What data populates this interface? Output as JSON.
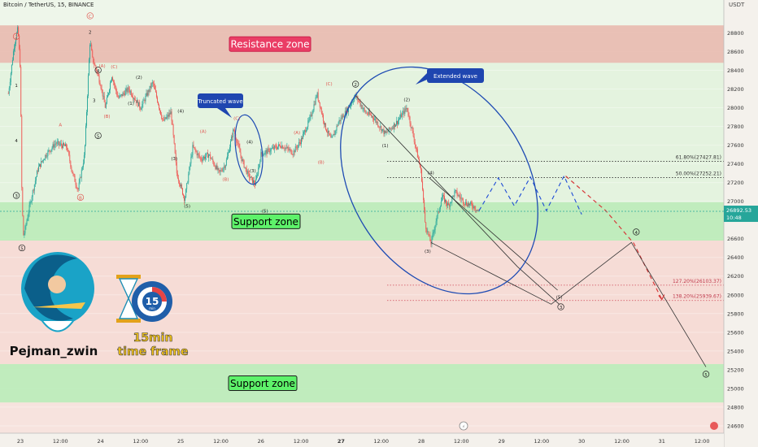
{
  "header": {
    "title": "Bitcoin / TetherUS, 15, BINANCE"
  },
  "axis_unit": "USDT",
  "author": {
    "name": "Pejman_zwin",
    "badge_number": "15",
    "badge_sub": "min",
    "timeframe_line1": "15min",
    "timeframe_line2": "time frame"
  },
  "colors": {
    "bull": "#26a69a",
    "bear": "#ef5350",
    "wave": "#1e4bb3",
    "resistance_fill": "#e8b9ab",
    "support_fill": "#b7ecb5",
    "green_bg": "#e4f3df",
    "pink_bg": "#f6dcd6",
    "price_tag": "#26a69a"
  },
  "chart_data": {
    "type": "candlestick",
    "title": "Bitcoin / TetherUS, 15, BINANCE",
    "ylabel": "USDT",
    "ylim": [
      24500,
      29000
    ],
    "yticks": [
      24600,
      24800,
      25000,
      25200,
      25400,
      25600,
      25800,
      26000,
      26200,
      26400,
      26600,
      26800,
      27000,
      27200,
      27400,
      27600,
      27800,
      28000,
      28200,
      28400,
      28600,
      28800
    ],
    "xtick_labels": [
      {
        "t": 0.0,
        "label": "23"
      },
      {
        "t": 0.5,
        "label": "12:00"
      },
      {
        "t": 1.0,
        "label": "24"
      },
      {
        "t": 1.5,
        "label": "12:00"
      },
      {
        "t": 2.0,
        "label": "25"
      },
      {
        "t": 2.5,
        "label": "12:00"
      },
      {
        "t": 3.0,
        "label": "26"
      },
      {
        "t": 3.5,
        "label": "12:00"
      },
      {
        "t": 4.0,
        "label": "27"
      },
      {
        "t": 4.5,
        "label": "12:00"
      },
      {
        "t": 5.0,
        "label": "28"
      },
      {
        "t": 5.5,
        "label": "12:00"
      },
      {
        "t": 6.0,
        "label": "29"
      },
      {
        "t": 6.5,
        "label": "12:00"
      },
      {
        "t": 7.0,
        "label": "30"
      },
      {
        "t": 7.5,
        "label": "12:00"
      },
      {
        "t": 8.0,
        "label": "31"
      },
      {
        "t": 8.5,
        "label": "12:00"
      }
    ],
    "current_price": {
      "value": 26892.53,
      "label": "26892.53",
      "countdown": "10:48"
    },
    "zones": [
      {
        "name": "Resistance zone",
        "low": 28480,
        "high": 28880,
        "kind": "resistance"
      },
      {
        "name": "Support zone",
        "low": 26580,
        "high": 26990,
        "kind": "support"
      },
      {
        "name": "Support zone",
        "low": 24850,
        "high": 25260,
        "kind": "support"
      }
    ],
    "fib_levels": [
      {
        "label": "61.80%(27427.81)",
        "value": 27427.81
      },
      {
        "label": "50.00%(27252.21)",
        "value": 27252.21
      },
      {
        "label": "127.20%(26103.37)",
        "value": 26103.37
      },
      {
        "label": "138.20%(25939.67)",
        "value": 25939.67
      }
    ],
    "callouts": [
      {
        "text": "Truncated wave",
        "t": 2.58,
        "price": 28050
      },
      {
        "text": "Extended wave",
        "t": 4.78,
        "price": 28450
      }
    ],
    "price_path": [
      [
        -0.15,
        28150
      ],
      [
        -0.08,
        28650
      ],
      [
        -0.03,
        28850
      ],
      [
        0.0,
        28420
      ],
      [
        0.02,
        27000
      ],
      [
        0.04,
        26620
      ],
      [
        0.14,
        27050
      ],
      [
        0.22,
        27350
      ],
      [
        0.32,
        27500
      ],
      [
        0.44,
        27620
      ],
      [
        0.58,
        27580
      ],
      [
        0.65,
        27300
      ],
      [
        0.72,
        27120
      ],
      [
        0.8,
        27500
      ],
      [
        0.84,
        28200
      ],
      [
        0.87,
        28720
      ],
      [
        0.9,
        28520
      ],
      [
        0.95,
        28400
      ],
      [
        1.0,
        28250
      ],
      [
        1.06,
        28000
      ],
      [
        1.14,
        28350
      ],
      [
        1.22,
        28100
      ],
      [
        1.35,
        28200
      ],
      [
        1.5,
        28000
      ],
      [
        1.65,
        28270
      ],
      [
        1.78,
        27850
      ],
      [
        1.88,
        27950
      ],
      [
        1.95,
        27300
      ],
      [
        2.05,
        27020
      ],
      [
        2.15,
        27580
      ],
      [
        2.25,
        27450
      ],
      [
        2.35,
        27500
      ],
      [
        2.48,
        27300
      ],
      [
        2.56,
        27400
      ],
      [
        2.66,
        27770
      ],
      [
        2.76,
        27450
      ],
      [
        2.84,
        27280
      ],
      [
        2.93,
        27180
      ],
      [
        3.0,
        27500
      ],
      [
        3.12,
        27550
      ],
      [
        3.25,
        27600
      ],
      [
        3.4,
        27520
      ],
      [
        3.5,
        27650
      ],
      [
        3.62,
        27900
      ],
      [
        3.7,
        28150
      ],
      [
        3.8,
        27800
      ],
      [
        3.88,
        27650
      ],
      [
        3.97,
        27850
      ],
      [
        4.08,
        27980
      ],
      [
        4.18,
        28130
      ],
      [
        4.3,
        27950
      ],
      [
        4.4,
        27900
      ],
      [
        4.55,
        27720
      ],
      [
        4.7,
        27850
      ],
      [
        4.82,
        28000
      ],
      [
        4.9,
        27700
      ],
      [
        5.0,
        27300
      ],
      [
        5.05,
        26750
      ],
      [
        5.12,
        26550
      ],
      [
        5.18,
        26780
      ],
      [
        5.26,
        27050
      ],
      [
        5.34,
        26950
      ],
      [
        5.42,
        27100
      ],
      [
        5.55,
        26980
      ],
      [
        5.65,
        26950
      ],
      [
        5.72,
        26892
      ]
    ],
    "projection_lines": [
      {
        "style": "dashed-blue",
        "points": [
          [
            5.72,
            26900
          ],
          [
            5.96,
            27250
          ],
          [
            6.16,
            26950
          ],
          [
            6.36,
            27260
          ],
          [
            6.56,
            26900
          ],
          [
            6.78,
            27270
          ],
          [
            7.0,
            26860
          ]
        ]
      },
      {
        "style": "dashed-red",
        "points": [
          [
            6.8,
            27270
          ],
          [
            7.3,
            26900
          ],
          [
            7.65,
            26550
          ],
          [
            8.0,
            25950
          ]
        ]
      },
      {
        "style": "solid-gray",
        "points": [
          [
            5.12,
            26560
          ],
          [
            6.62,
            25900
          ],
          [
            7.62,
            26560
          ],
          [
            8.55,
            25230
          ]
        ]
      },
      {
        "style": "solid-gray",
        "points": [
          [
            4.18,
            28130
          ],
          [
            6.2,
            26300
          ],
          [
            6.72,
            25900
          ]
        ]
      },
      {
        "style": "solid-gray",
        "points": [
          [
            5.1,
            27250
          ],
          [
            6.7,
            26050
          ]
        ]
      }
    ],
    "wave_labels": [
      {
        "text": "2",
        "t": -0.05,
        "price": 28740,
        "kind": "circle-red"
      },
      {
        "text": "1",
        "t": -0.05,
        "price": 28220,
        "kind": "plain"
      },
      {
        "text": "3",
        "t": -0.05,
        "price": 27040,
        "kind": "circle"
      },
      {
        "text": "4",
        "t": -0.05,
        "price": 27630,
        "kind": "plain"
      },
      {
        "text": "5",
        "t": 0.02,
        "price": 26480,
        "kind": "circle"
      },
      {
        "text": "A",
        "t": 0.5,
        "price": 27800,
        "kind": "red"
      },
      {
        "text": "B",
        "t": 0.75,
        "price": 27020,
        "kind": "circle-red"
      },
      {
        "text": "C",
        "t": 0.87,
        "price": 28960,
        "kind": "circle-red"
      },
      {
        "text": "2",
        "t": 0.87,
        "price": 28790,
        "kind": "plain"
      },
      {
        "text": "4",
        "t": 0.97,
        "price": 28380,
        "kind": "circle"
      },
      {
        "text": "(A)",
        "t": 1.02,
        "price": 28430,
        "kind": "red"
      },
      {
        "text": "(C)",
        "t": 1.17,
        "price": 28420,
        "kind": "red"
      },
      {
        "text": "(2)",
        "t": 1.48,
        "price": 28310,
        "kind": "plain"
      },
      {
        "text": "3",
        "t": 0.92,
        "price": 28060,
        "kind": "plain"
      },
      {
        "text": "5",
        "t": 0.97,
        "price": 27680,
        "kind": "circle"
      },
      {
        "text": "(B)",
        "t": 1.08,
        "price": 27890,
        "kind": "red"
      },
      {
        "text": "(1)",
        "t": 1.38,
        "price": 28030,
        "kind": "plain"
      },
      {
        "text": "(3)",
        "t": 1.92,
        "price": 27440,
        "kind": "plain"
      },
      {
        "text": "(4)",
        "t": 2.0,
        "price": 27950,
        "kind": "plain"
      },
      {
        "text": "(5)",
        "t": 2.08,
        "price": 26930,
        "kind": "plain"
      },
      {
        "text": "(A)",
        "t": 2.28,
        "price": 27730,
        "kind": "red"
      },
      {
        "text": "(B)",
        "t": 2.56,
        "price": 27220,
        "kind": "red"
      },
      {
        "text": "(C)",
        "t": 2.7,
        "price": 27870,
        "kind": "red"
      },
      {
        "text": "(4)",
        "t": 2.86,
        "price": 27620,
        "kind": "plain"
      },
      {
        "text": "(3)",
        "t": 2.9,
        "price": 27310,
        "kind": "plain"
      },
      {
        "text": "(5)",
        "t": 3.05,
        "price": 26880,
        "kind": "plain"
      },
      {
        "text": "(A)",
        "t": 3.45,
        "price": 27720,
        "kind": "red"
      },
      {
        "text": "(B)",
        "t": 3.75,
        "price": 27400,
        "kind": "red"
      },
      {
        "text": "(C)",
        "t": 3.85,
        "price": 28240,
        "kind": "red"
      },
      {
        "text": "2",
        "t": 4.18,
        "price": 28230,
        "kind": "circle"
      },
      {
        "text": "(1)",
        "t": 4.55,
        "price": 27580,
        "kind": "plain"
      },
      {
        "text": "(2)",
        "t": 4.82,
        "price": 28070,
        "kind": "plain"
      },
      {
        "text": "(4)",
        "t": 5.12,
        "price": 27290,
        "kind": "plain"
      },
      {
        "text": "(3)",
        "t": 5.08,
        "price": 26450,
        "kind": "plain"
      },
      {
        "text": "(5)",
        "t": 6.72,
        "price": 25960,
        "kind": "plain"
      },
      {
        "text": "3",
        "t": 6.74,
        "price": 25850,
        "kind": "circle"
      },
      {
        "text": "4",
        "t": 7.68,
        "price": 26650,
        "kind": "circle"
      },
      {
        "text": "5",
        "t": 8.55,
        "price": 25130,
        "kind": "circle"
      }
    ]
  }
}
